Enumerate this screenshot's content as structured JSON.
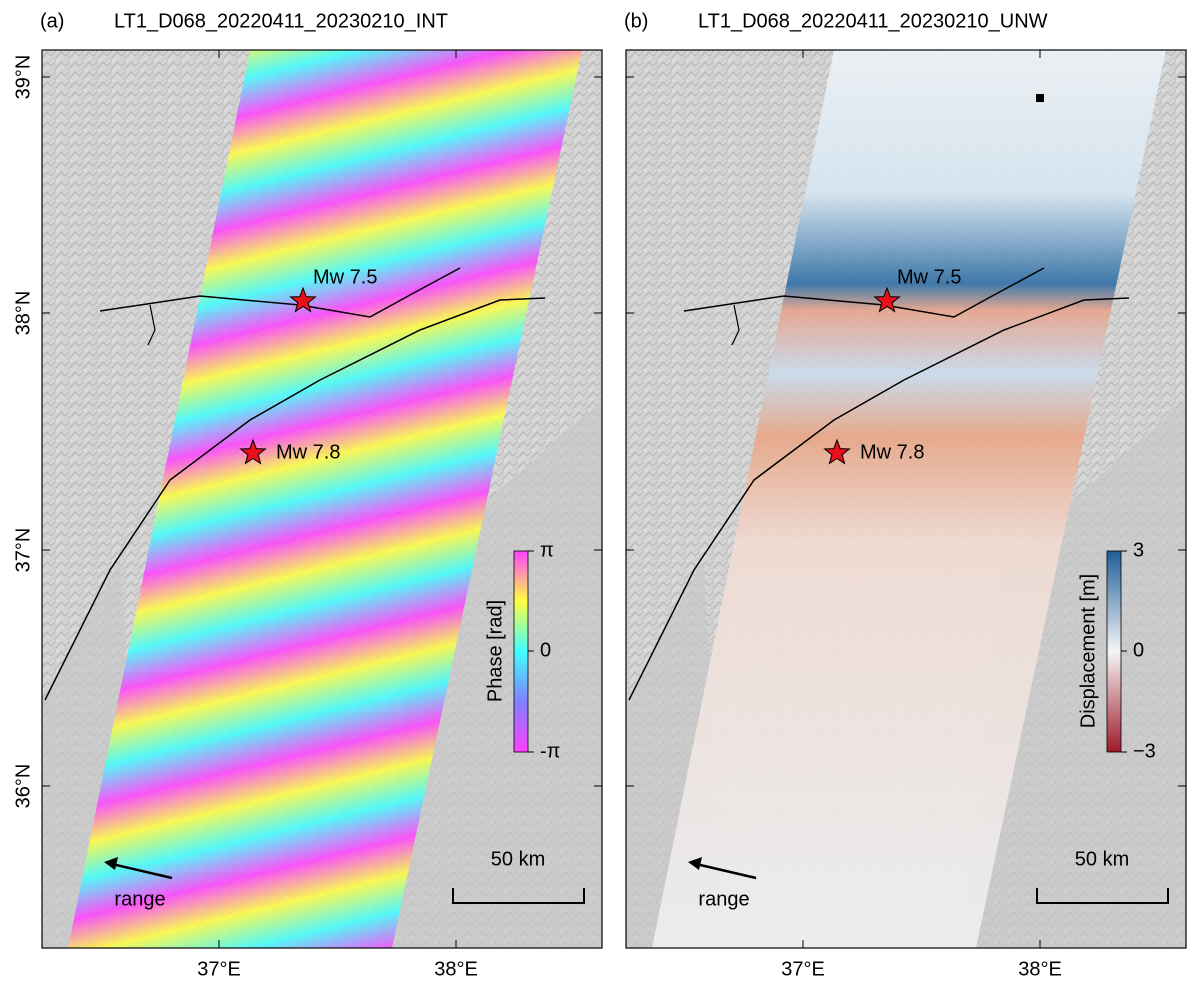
{
  "axes": {
    "lat_labels": [
      "39°N",
      "38°N",
      "37°N",
      "36°N"
    ],
    "lon_labels": [
      "37°E",
      "38°E"
    ]
  },
  "panels": [
    {
      "label": "(a)",
      "title": "LT1_D068_20220411_20230210_INT",
      "events": [
        "Mw 7.5",
        "Mw 7.8"
      ],
      "colorbar": {
        "label": "Phase [rad]",
        "ticks": [
          "π",
          "0",
          "-π"
        ]
      },
      "scale_bar": "50 km",
      "direction": "range"
    },
    {
      "label": "(b)",
      "title": "LT1_D068_20220411_20230210_UNW",
      "events": [
        "Mw 7.5",
        "Mw 7.8"
      ],
      "colorbar": {
        "label": "Displacement [m]",
        "ticks": [
          "3",
          "0",
          "−3"
        ]
      },
      "scale_bar": "50 km",
      "direction": "range"
    }
  ]
}
